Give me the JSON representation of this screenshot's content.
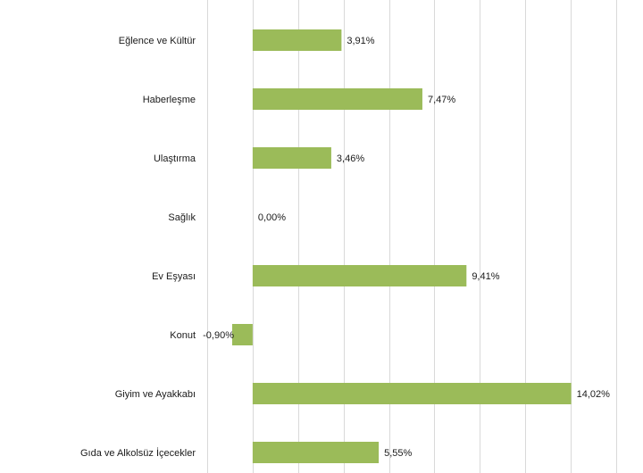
{
  "chart_data": {
    "type": "bar",
    "orientation": "horizontal",
    "categories": [
      "Eğlence ve Kültür",
      "Haberleşme",
      "Ulaştırma",
      "Sağlık",
      "Ev Eşyası",
      "Konut",
      "Giyim ve Ayakkabı",
      "Gıda ve Alkolsüz İçecekler"
    ],
    "values": [
      3.91,
      7.47,
      3.46,
      0.0,
      9.41,
      -0.9,
      14.02,
      5.55
    ],
    "data_labels": [
      "3,91%",
      "7,47%",
      "3,46%",
      "0,00%",
      "9,41%",
      "-0,90%",
      "14,02%",
      "5,55%"
    ],
    "title": "",
    "xlabel": "",
    "ylabel": "",
    "xlim": [
      -2,
      16
    ],
    "grid_step": 2,
    "grid": true,
    "legend": "none",
    "colors": {
      "bar": "#9bbb59",
      "grid": "#d9d9d9",
      "text": "#1a1a1a"
    }
  }
}
